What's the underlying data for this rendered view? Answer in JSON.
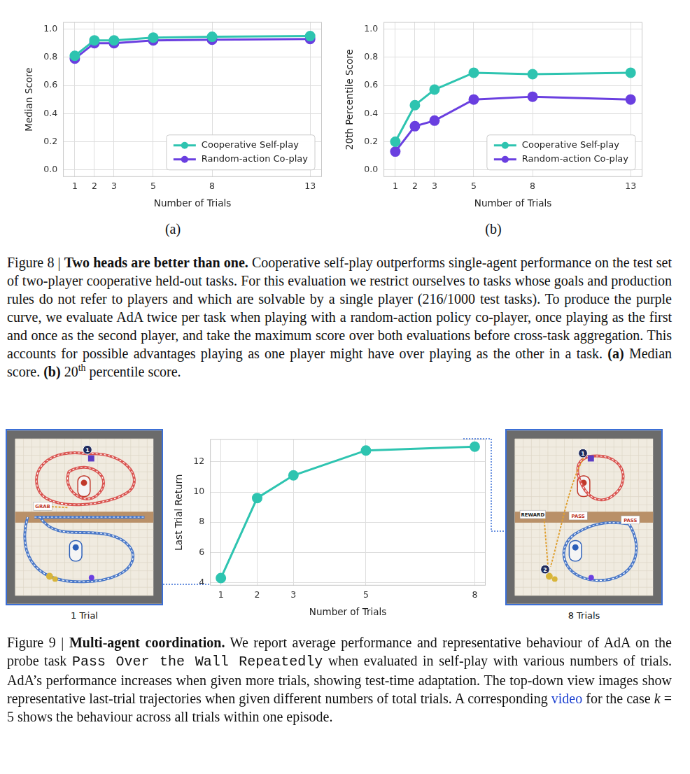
{
  "chart_data": [
    {
      "type": "line",
      "x_label": "Number of Trials",
      "y_label": "Median Score",
      "x": [
        1,
        2,
        3,
        5,
        8,
        13
      ],
      "series": [
        {
          "name": "Cooperative Self-play",
          "color": "#2ec4b0",
          "values": [
            0.81,
            0.92,
            0.92,
            0.94,
            0.945,
            0.95
          ]
        },
        {
          "name": "Random-action Co-play",
          "color": "#6a3fe0",
          "values": [
            0.79,
            0.9,
            0.9,
            0.92,
            0.925,
            0.93
          ]
        }
      ],
      "xlim": [
        0.4,
        13.6
      ],
      "xticks": [
        1,
        2,
        3,
        5,
        8,
        13
      ],
      "ylim": [
        -0.05,
        1.05
      ],
      "yticks": [
        {
          "value": 0,
          "label": "0.0"
        },
        0.2,
        0.4,
        0.6,
        0.8,
        {
          "value": 1,
          "label": "1.0"
        }
      ],
      "grid": true,
      "legend": "lower right",
      "marker": "circle"
    },
    {
      "type": "line",
      "x_label": "Number of Trials",
      "y_label": "20th Percentile Score",
      "x": [
        1,
        2,
        3,
        5,
        8,
        13
      ],
      "series": [
        {
          "name": "Cooperative Self-play",
          "color": "#2ec4b0",
          "values": [
            0.2,
            0.46,
            0.57,
            0.69,
            0.68,
            0.69
          ]
        },
        {
          "name": "Random-action Co-play",
          "color": "#6a3fe0",
          "values": [
            0.13,
            0.31,
            0.35,
            0.5,
            0.52,
            0.5
          ]
        }
      ],
      "xlim": [
        0.4,
        13.6
      ],
      "xticks": [
        1,
        2,
        3,
        5,
        8,
        13
      ],
      "ylim": [
        -0.05,
        1.05
      ],
      "yticks": [
        {
          "value": 0,
          "label": "0.0"
        },
        0.2,
        0.4,
        0.6,
        0.8,
        {
          "value": 1,
          "label": "1.0"
        }
      ],
      "grid": true,
      "legend": "lower right",
      "marker": "circle"
    },
    {
      "type": "line",
      "x_label": "Number of Trials",
      "y_label": "Last Trial Return",
      "x": [
        1,
        2,
        3,
        5,
        8
      ],
      "values": [
        4.3,
        9.6,
        11.1,
        12.75,
        13.0
      ],
      "color": "#2ec4b0",
      "xlim": [
        0.7,
        8.3
      ],
      "xticks": [
        1,
        2,
        3,
        5,
        8
      ],
      "ylim": [
        3.8,
        13.5
      ],
      "yticks": [
        4,
        6,
        8,
        10,
        12
      ],
      "grid": true,
      "marker": "circle"
    }
  ],
  "figure8": {
    "panel_labels": [
      "(a)",
      "(b)"
    ],
    "caption": [
      {
        "text": "Figure 8 | "
      },
      {
        "text": "Two heads are better than one.",
        "style": "bold"
      },
      {
        "text": " Cooperative self-play outperforms single-agent performance on the test set of two-player cooperative held-out tasks. For this evaluation we restrict ourselves to tasks whose goals and production rules do not refer to players and which are solvable by a single player (216/1000 test tasks). To produce the purple curve, we evaluate AdA twice per task when playing with a random-action policy co-player, once playing as the first and once as the second player, and take the maximum score over both evaluations before cross-task aggregation. This accounts for possible advantages playing as one player might have over playing as the other in a task. "
      },
      {
        "text": "(a)",
        "style": "bold"
      },
      {
        "text": " Median score. "
      },
      {
        "text": "(b)",
        "style": "bold"
      },
      {
        "text": " 20"
      },
      {
        "text": "th",
        "style": "sup"
      },
      {
        "text": " percentile score."
      }
    ]
  },
  "figure9": {
    "images": [
      {
        "label": "1 Trial",
        "texts": [
          "GRAB"
        ],
        "markers": [
          "1"
        ]
      },
      {
        "label": "8 Trials",
        "texts": [
          "REWARD",
          "PASS",
          "PASS"
        ],
        "markers": [
          "1",
          "2"
        ]
      }
    ],
    "caption": [
      {
        "text": "Figure 9 | "
      },
      {
        "text": "Multi-agent coordination.",
        "style": "bold"
      },
      {
        "text": " We report average performance and representative behaviour of AdA on the probe task "
      },
      {
        "text": "Pass Over the Wall Repeatedly",
        "style": "mono"
      },
      {
        "text": " when evaluated in self-play with various numbers of trials. AdA’s performance increases when given more trials, showing test-time adaptation. The top-down view images show representative last-trial trajectories when given different numbers of total trials. A corresponding "
      },
      {
        "text": "video",
        "style": "link"
      },
      {
        "text": " for the case "
      },
      {
        "text": "k",
        "style": "italic"
      },
      {
        "text": " = 5 shows the behaviour across all trials within one episode."
      }
    ]
  }
}
